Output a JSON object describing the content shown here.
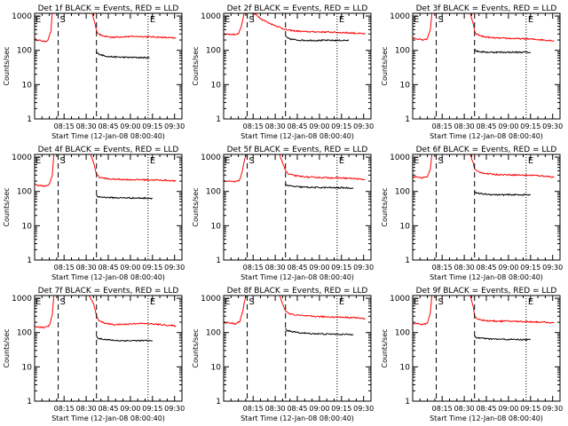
{
  "chart_data": [
    {
      "type": "line",
      "title": "Det 1f BLACK = Events, RED = LLD",
      "xlabel": "Start Time (12-Jan-08 08:00:40)",
      "ylabel": "Counts/sec",
      "x_unit": "minutes after 08:00:40",
      "xlim": [
        0,
        100
      ],
      "ylim": [
        1,
        1200
      ],
      "yscale": "log",
      "xticks": [
        "08:15",
        "08:30",
        "08:45",
        "09:00",
        "09:15",
        "09:30"
      ],
      "yticks": [
        "1",
        "10",
        "100",
        "1000"
      ],
      "markers": [
        {
          "label": "E",
          "x": 0,
          "style": "none"
        },
        {
          "label": "S",
          "x": 16,
          "style": "dashed"
        },
        {
          "label": "",
          "x": 42,
          "style": "dashed"
        },
        {
          "label": "E",
          "x": 77,
          "style": "dotted"
        }
      ],
      "series": [
        {
          "color": "#ff0000",
          "x": [
            0,
            7,
            9,
            11,
            12,
            33,
            39,
            41,
            42,
            43,
            47,
            52,
            60,
            68,
            75,
            82,
            90,
            96
          ],
          "y": [
            210,
            180,
            200,
            350,
            1200,
            1200,
            1200,
            600,
            380,
            300,
            260,
            240,
            250,
            255,
            250,
            245,
            235,
            225
          ]
        },
        {
          "color": "#000000",
          "x": [
            42,
            43,
            46,
            50,
            55,
            60,
            65,
            70,
            75,
            78
          ],
          "y": [
            90,
            80,
            72,
            66,
            64,
            63,
            62,
            62,
            61,
            61
          ]
        }
      ]
    },
    {
      "type": "line",
      "title": "Det 2f BLACK = Events, RED = LLD",
      "xlabel": "Start Time (12-Jan-08 08:00:40)",
      "ylabel": "Counts/sec",
      "x_unit": "minutes after 08:00:40",
      "xlim": [
        0,
        100
      ],
      "ylim": [
        1,
        1200
      ],
      "yscale": "log",
      "xticks": [
        "08:15",
        "08:30",
        "08:45",
        "09:00",
        "09:15",
        "09:30"
      ],
      "yticks": [
        "1",
        "10",
        "100",
        "1000"
      ],
      "markers": [
        {
          "label": "E",
          "x": 0,
          "style": "none"
        },
        {
          "label": "S",
          "x": 16,
          "style": "dashed"
        },
        {
          "label": "",
          "x": 42,
          "style": "dashed"
        },
        {
          "label": "E",
          "x": 77,
          "style": "dotted"
        }
      ],
      "series": [
        {
          "color": "#ff0000",
          "x": [
            0,
            6,
            10,
            12,
            14,
            19,
            22,
            26,
            30,
            34,
            38,
            42,
            48,
            56,
            64,
            72,
            80,
            88,
            96
          ],
          "y": [
            300,
            290,
            300,
            500,
            1200,
            1200,
            1100,
            800,
            650,
            550,
            470,
            400,
            370,
            350,
            345,
            340,
            330,
            320,
            300
          ]
        },
        {
          "color": "#000000",
          "x": [
            42,
            43,
            46,
            50,
            56,
            62,
            70,
            78,
            85
          ],
          "y": [
            260,
            230,
            210,
            200,
            195,
            195,
            195,
            195,
            195
          ]
        }
      ]
    },
    {
      "type": "line",
      "title": "Det 3f BLACK = Events, RED = LLD",
      "xlabel": "Start Time (12-Jan-08 08:00:40)",
      "ylabel": "Counts/sec",
      "x_unit": "minutes after 08:00:40",
      "xlim": [
        0,
        100
      ],
      "ylim": [
        1,
        1200
      ],
      "yscale": "log",
      "xticks": [
        "08:15",
        "08:30",
        "08:45",
        "09:00",
        "09:15",
        "09:30"
      ],
      "yticks": [
        "1",
        "10",
        "100",
        "1000"
      ],
      "markers": [
        {
          "label": "E",
          "x": 0,
          "style": "none"
        },
        {
          "label": "S",
          "x": 16,
          "style": "dashed"
        },
        {
          "label": "",
          "x": 42,
          "style": "dashed"
        },
        {
          "label": "E",
          "x": 77,
          "style": "dotted"
        }
      ],
      "series": [
        {
          "color": "#ff0000",
          "x": [
            0,
            7,
            10,
            12,
            13,
            33,
            39,
            41,
            42,
            43,
            48,
            55,
            62,
            70,
            78,
            86,
            96
          ],
          "y": [
            230,
            200,
            220,
            400,
            1200,
            1200,
            1200,
            600,
            360,
            300,
            250,
            230,
            225,
            220,
            215,
            205,
            190
          ]
        },
        {
          "color": "#000000",
          "x": [
            42,
            43,
            47,
            52,
            58,
            64,
            70,
            76,
            80
          ],
          "y": [
            110,
            95,
            90,
            88,
            88,
            88,
            88,
            88,
            87
          ]
        }
      ]
    },
    {
      "type": "line",
      "title": "Det 4f BLACK = Events, RED = LLD",
      "xlabel": "Start Time (12-Jan-08 08:00:40)",
      "ylabel": "Counts/sec",
      "x_unit": "minutes after 08:00:40",
      "xlim": [
        0,
        100
      ],
      "ylim": [
        1,
        1200
      ],
      "yscale": "log",
      "xticks": [
        "08:15",
        "08:30",
        "08:45",
        "09:00",
        "09:15",
        "09:30"
      ],
      "yticks": [
        "1",
        "10",
        "100",
        "1000"
      ],
      "markers": [
        {
          "label": "E",
          "x": 0,
          "style": "none"
        },
        {
          "label": "S",
          "x": 16,
          "style": "dashed"
        },
        {
          "label": "",
          "x": 42,
          "style": "dashed"
        },
        {
          "label": "E",
          "x": 77,
          "style": "dotted"
        }
      ],
      "series": [
        {
          "color": "#ff0000",
          "x": [
            0,
            7,
            10,
            12,
            13,
            33,
            38,
            40,
            42,
            44,
            50,
            58,
            66,
            74,
            82,
            90,
            96
          ],
          "y": [
            160,
            140,
            160,
            300,
            1200,
            1200,
            1200,
            700,
            320,
            260,
            230,
            225,
            220,
            220,
            215,
            210,
            200
          ]
        },
        {
          "color": "#000000",
          "x": [
            42,
            43,
            47,
            52,
            58,
            64,
            70,
            76,
            80
          ],
          "y": [
            75,
            70,
            68,
            66,
            65,
            65,
            64,
            64,
            63
          ]
        }
      ]
    },
    {
      "type": "line",
      "title": "Det 5f BLACK = Events, RED = LLD",
      "xlabel": "Start Time (12-Jan-08 08:00:40)",
      "ylabel": "Counts/sec",
      "x_unit": "minutes after 08:00:40",
      "xlim": [
        0,
        100
      ],
      "ylim": [
        1,
        1200
      ],
      "yscale": "log",
      "xticks": [
        "08:15",
        "08:30",
        "08:45",
        "09:00",
        "09:15",
        "09:30"
      ],
      "yticks": [
        "1",
        "10",
        "100",
        "1000"
      ],
      "markers": [
        {
          "label": "E",
          "x": 0,
          "style": "none"
        },
        {
          "label": "S",
          "x": 16,
          "style": "dashed"
        },
        {
          "label": "",
          "x": 42,
          "style": "dashed"
        },
        {
          "label": "E",
          "x": 77,
          "style": "dotted"
        }
      ],
      "series": [
        {
          "color": "#ff0000",
          "x": [
            0,
            8,
            11,
            13,
            15,
            33,
            38,
            40,
            42,
            44,
            50,
            58,
            66,
            74,
            82,
            90,
            96
          ],
          "y": [
            200,
            190,
            220,
            450,
            1200,
            1200,
            1200,
            700,
            400,
            320,
            280,
            260,
            255,
            250,
            245,
            235,
            220
          ]
        },
        {
          "color": "#000000",
          "x": [
            42,
            43,
            47,
            52,
            58,
            64,
            70,
            76,
            82,
            88
          ],
          "y": [
            170,
            150,
            140,
            135,
            132,
            130,
            130,
            128,
            128,
            125
          ]
        }
      ]
    },
    {
      "type": "line",
      "title": "Det 6f BLACK = Events, RED = LLD",
      "xlabel": "Start Time (12-Jan-08 08:00:40)",
      "ylabel": "Counts/sec",
      "x_unit": "minutes after 08:00:40",
      "xlim": [
        0,
        100
      ],
      "ylim": [
        1,
        1200
      ],
      "yscale": "log",
      "xticks": [
        "08:15",
        "08:30",
        "08:45",
        "09:00",
        "09:15",
        "09:30"
      ],
      "yticks": [
        "1",
        "10",
        "100",
        "1000"
      ],
      "markers": [
        {
          "label": "E",
          "x": 0,
          "style": "none"
        },
        {
          "label": "S",
          "x": 16,
          "style": "dashed"
        },
        {
          "label": "",
          "x": 42,
          "style": "dashed"
        },
        {
          "label": "E",
          "x": 77,
          "style": "dotted"
        }
      ],
      "series": [
        {
          "color": "#ff0000",
          "x": [
            0,
            7,
            10,
            12,
            13,
            33,
            39,
            41,
            42,
            44,
            50,
            58,
            66,
            74,
            82,
            90,
            96
          ],
          "y": [
            270,
            250,
            270,
            450,
            1200,
            1200,
            1200,
            700,
            450,
            380,
            330,
            310,
            305,
            300,
            295,
            280,
            260
          ]
        },
        {
          "color": "#000000",
          "x": [
            42,
            43,
            47,
            52,
            58,
            64,
            70,
            76,
            80
          ],
          "y": [
            100,
            90,
            85,
            82,
            80,
            80,
            80,
            80,
            79
          ]
        }
      ]
    },
    {
      "type": "line",
      "title": "Det 7f BLACK = Events, RED = LLD",
      "xlabel": "Start Time (12-Jan-08 08:00:40)",
      "ylabel": "Counts/sec",
      "x_unit": "minutes after 08:00:40",
      "xlim": [
        0,
        100
      ],
      "ylim": [
        1,
        1200
      ],
      "yscale": "log",
      "xticks": [
        "08:15",
        "08:30",
        "08:45",
        "09:00",
        "09:15",
        "09:30"
      ],
      "yticks": [
        "1",
        "10",
        "100",
        "1000"
      ],
      "markers": [
        {
          "label": "E",
          "x": 0,
          "style": "none"
        },
        {
          "label": "S",
          "x": 16,
          "style": "dashed"
        },
        {
          "label": "",
          "x": 42,
          "style": "dashed"
        },
        {
          "label": "E",
          "x": 77,
          "style": "dotted"
        }
      ],
      "series": [
        {
          "color": "#ff0000",
          "x": [
            0,
            7,
            10,
            12,
            13,
            33,
            37,
            40,
            42,
            44,
            48,
            54,
            62,
            70,
            78,
            86,
            96
          ],
          "y": [
            150,
            140,
            160,
            320,
            1200,
            1200,
            1200,
            700,
            300,
            220,
            185,
            170,
            175,
            185,
            180,
            170,
            155
          ]
        },
        {
          "color": "#000000",
          "x": [
            42,
            43,
            47,
            52,
            58,
            64,
            70,
            76,
            80
          ],
          "y": [
            75,
            68,
            64,
            60,
            58,
            58,
            58,
            58,
            57
          ]
        }
      ]
    },
    {
      "type": "line",
      "title": "Det 8f BLACK = Events, RED = LLD",
      "xlabel": "Start Time (12-Jan-08 08:00:40)",
      "ylabel": "Counts/sec",
      "x_unit": "minutes after 08:00:40",
      "xlim": [
        0,
        100
      ],
      "ylim": [
        1,
        1200
      ],
      "yscale": "log",
      "xticks": [
        "08:15",
        "08:30",
        "08:45",
        "09:00",
        "09:15",
        "09:30"
      ],
      "yticks": [
        "1",
        "10",
        "100",
        "1000"
      ],
      "markers": [
        {
          "label": "E",
          "x": 0,
          "style": "none"
        },
        {
          "label": "S",
          "x": 16,
          "style": "dashed"
        },
        {
          "label": "",
          "x": 42,
          "style": "dashed"
        },
        {
          "label": "E",
          "x": 77,
          "style": "dotted"
        }
      ],
      "series": [
        {
          "color": "#ff0000",
          "x": [
            0,
            8,
            11,
            13,
            15,
            33,
            38,
            40,
            42,
            44,
            50,
            58,
            66,
            74,
            82,
            90,
            96
          ],
          "y": [
            200,
            180,
            210,
            430,
            1200,
            1200,
            1200,
            700,
            420,
            360,
            320,
            300,
            290,
            285,
            280,
            270,
            250
          ]
        },
        {
          "color": "#000000",
          "x": [
            42,
            43,
            47,
            52,
            58,
            64,
            70,
            76,
            82,
            88
          ],
          "y": [
            130,
            115,
            105,
            98,
            94,
            92,
            90,
            90,
            88,
            88
          ]
        }
      ]
    },
    {
      "type": "line",
      "title": "Det 9f BLACK = Events, RED = LLD",
      "xlabel": "Start Time (12-Jan-08 08:00:40)",
      "ylabel": "Counts/sec",
      "x_unit": "minutes after 08:00:40",
      "xlim": [
        0,
        100
      ],
      "ylim": [
        1,
        1200
      ],
      "yscale": "log",
      "xticks": [
        "08:15",
        "08:30",
        "08:45",
        "09:00",
        "09:15",
        "09:30"
      ],
      "yticks": [
        "1",
        "10",
        "100",
        "1000"
      ],
      "markers": [
        {
          "label": "E",
          "x": 0,
          "style": "none"
        },
        {
          "label": "S",
          "x": 16,
          "style": "dashed"
        },
        {
          "label": "",
          "x": 42,
          "style": "dashed"
        },
        {
          "label": "E",
          "x": 77,
          "style": "dotted"
        }
      ],
      "series": [
        {
          "color": "#ff0000",
          "x": [
            0,
            7,
            10,
            12,
            13,
            33,
            39,
            41,
            42,
            44,
            50,
            58,
            66,
            74,
            82,
            90,
            96
          ],
          "y": [
            190,
            170,
            190,
            380,
            1200,
            1200,
            1200,
            600,
            300,
            250,
            220,
            215,
            215,
            210,
            205,
            200,
            190
          ]
        },
        {
          "color": "#000000",
          "x": [
            42,
            43,
            47,
            52,
            58,
            64,
            70,
            76,
            80
          ],
          "y": [
            80,
            72,
            68,
            65,
            64,
            63,
            63,
            62,
            62
          ]
        }
      ]
    }
  ]
}
